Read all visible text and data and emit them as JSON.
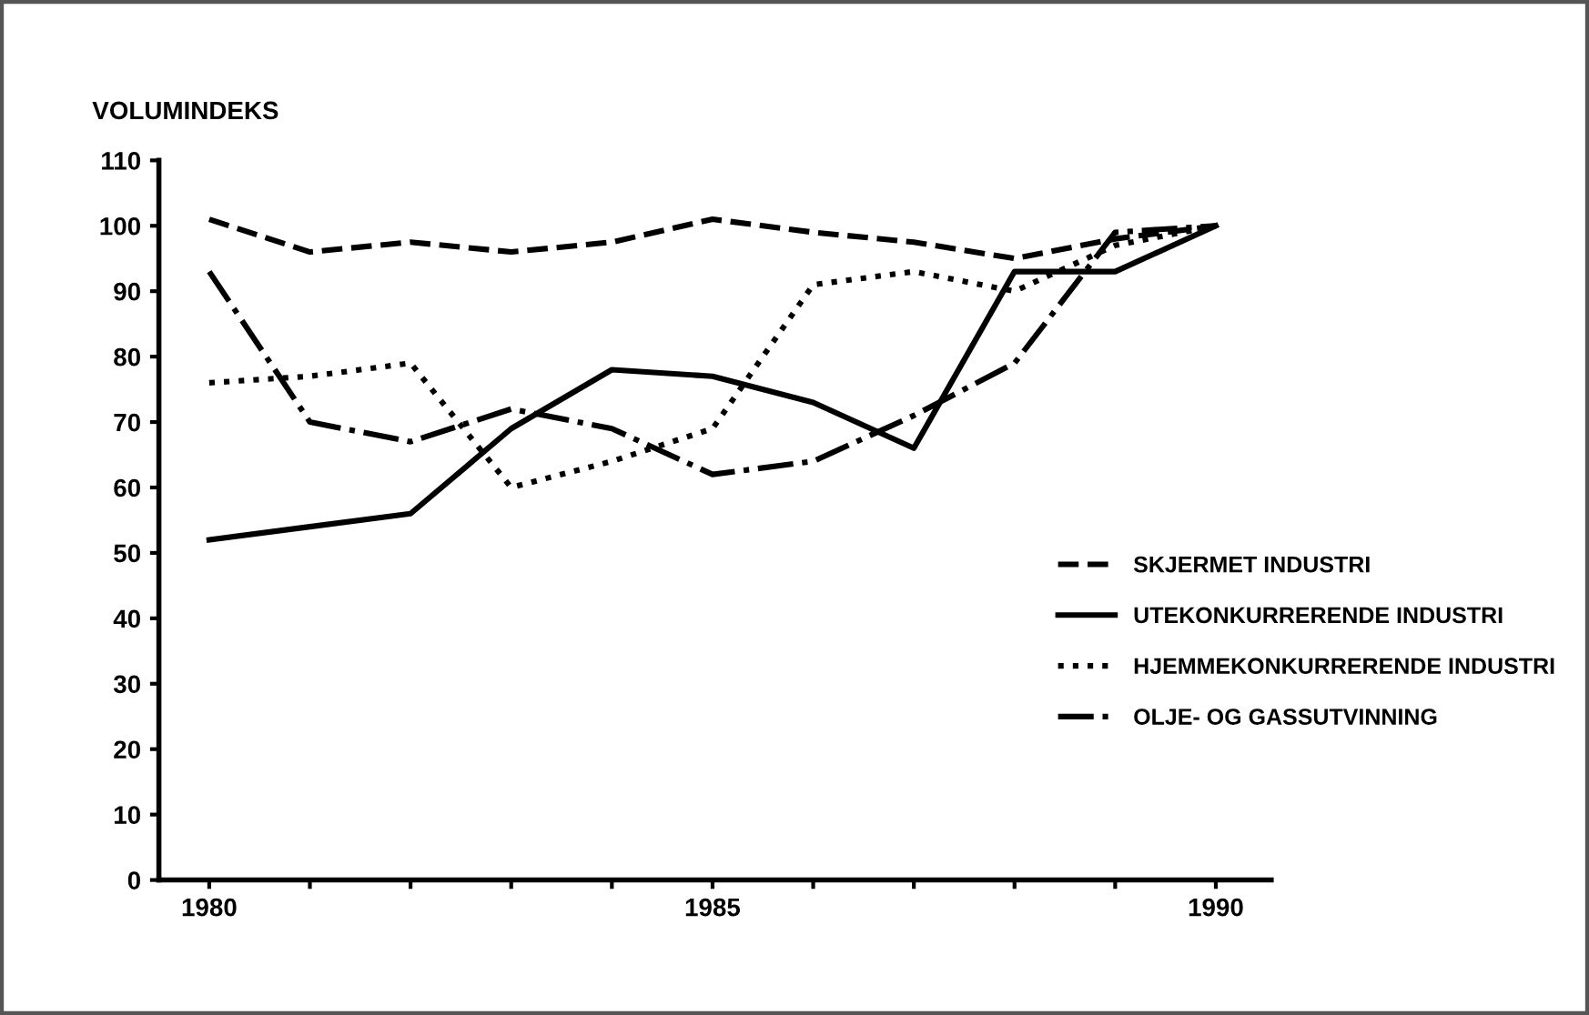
{
  "chart_data": {
    "type": "line",
    "ylabel": "VOLUMINDEKS",
    "x": [
      1980,
      1981,
      1982,
      1983,
      1984,
      1985,
      1986,
      1987,
      1988,
      1989,
      1990
    ],
    "series": [
      {
        "name": "SKJERMET INDUSTRI",
        "color": "#000000",
        "line_style": "dashed",
        "values": [
          101,
          96,
          97.5,
          96,
          97.5,
          101,
          99,
          97.5,
          95,
          98,
          100
        ]
      },
      {
        "name": "UTEKONKURRERENDE INDUSTRI",
        "color": "#000000",
        "line_style": "solid",
        "values": [
          52,
          54,
          56,
          69,
          78,
          77,
          73,
          66,
          93,
          93,
          100
        ]
      },
      {
        "name": "HJEMMEKONKURRERENDE INDUSTRI",
        "color": "#000000",
        "line_style": "dotted",
        "values": [
          76,
          77,
          79,
          60,
          64,
          69,
          91,
          93,
          90,
          97,
          100
        ]
      },
      {
        "name": "OLJE- OG GASSUTVINNING",
        "color": "#000000",
        "line_style": "dashdot",
        "values": [
          93,
          70,
          67,
          72,
          69,
          62,
          64,
          71,
          79,
          99,
          100
        ]
      }
    ],
    "xlim": [
      1979.5,
      1990.55
    ],
    "ylim": [
      0,
      110
    ],
    "xticks": [
      1980,
      {
        "value": 1981,
        "label": null
      },
      {
        "value": 1982,
        "label": null
      },
      {
        "value": 1983,
        "label": null
      },
      {
        "value": 1984,
        "label": null
      },
      1985,
      {
        "value": 1986,
        "label": null
      },
      {
        "value": 1987,
        "label": null
      },
      {
        "value": 1988,
        "label": null
      },
      {
        "value": 1989,
        "label": null
      },
      1990
    ],
    "yticks": [
      0,
      10,
      20,
      30,
      40,
      50,
      60,
      70,
      80,
      90,
      100,
      110
    ],
    "grid": false,
    "legend": "right",
    "marker": "none"
  }
}
